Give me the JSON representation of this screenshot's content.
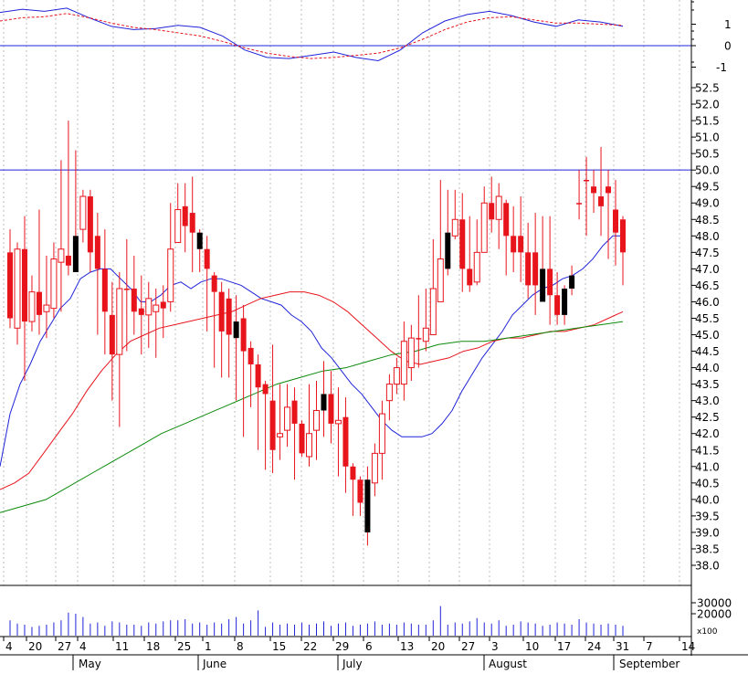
{
  "chart_data": {
    "type": "candlestick",
    "colors": {
      "up_candle": "#e8141c",
      "down_candle": "#000000",
      "wick": "#e8141c",
      "ma_fast": "#1f24d8",
      "ma_mid": "#e8141c",
      "ma_slow": "#0a8a0a",
      "reference_line": "#1f24d8",
      "volume_bar": "#1f24d8",
      "oscillator_main": "#1f24d8",
      "oscillator_signal": "#e8141c",
      "grid": "#bdbdbd"
    },
    "x_tick_labels": [
      "4",
      "20",
      "27",
      "4",
      "11",
      "18",
      "25",
      "1",
      "8",
      "15",
      "22",
      "29",
      "6",
      "13",
      "20",
      "27",
      "3",
      "10",
      "17",
      "24",
      "31",
      "7",
      "14"
    ],
    "month_labels": [
      "May",
      "June",
      "July",
      "August",
      "September"
    ],
    "price_axis": {
      "ylim": [
        37.5,
        52.8
      ],
      "ticks": [
        "38.0",
        "38.5",
        "39.0",
        "39.5",
        "40.0",
        "40.5",
        "41.0",
        "41.5",
        "42.0",
        "42.5",
        "43.0",
        "43.5",
        "44.0",
        "44.5",
        "45.0",
        "45.5",
        "46.0",
        "46.5",
        "47.0",
        "47.5",
        "48.0",
        "48.5",
        "49.0",
        "49.5",
        "50.0",
        "50.5",
        "51.0",
        "51.5",
        "52.0",
        "52.5"
      ],
      "reference_value": 50.0
    },
    "oscillator_axis": {
      "ylim": [
        -1.5,
        2.2
      ],
      "ticks": [
        "-1",
        "0",
        "1"
      ],
      "reference_value": 0
    },
    "volume_axis": {
      "ylim": [
        0,
        40000
      ],
      "ticks": [
        "20000",
        "30000"
      ],
      "unit_label": "x100"
    },
    "candles": {
      "open": [
        47.5,
        45.2,
        47.6,
        45.4,
        46.3,
        45.7,
        45.8,
        47.2,
        47.4,
        46.9,
        48.2,
        49.2,
        48.0,
        47.0,
        45.6,
        44.4,
        46.4,
        46.4,
        45.8,
        45.6,
        45.7,
        46.0,
        46.0,
        47.8,
        48.9,
        48.7,
        48.1,
        47.6,
        46.8,
        46.3,
        46.1,
        44.9,
        45.5,
        44.6,
        44.1,
        43.5,
        43.0,
        41.9,
        42.1,
        43.0,
        42.3,
        41.3,
        42.1,
        42.7,
        43.2,
        42.3,
        42.5,
        41.0,
        40.6,
        39.0,
        40.5,
        41.4,
        43.0,
        43.5,
        43.5,
        44.0,
        44.9,
        44.8,
        45.0,
        46.0,
        47.0,
        48.0,
        48.5,
        47.0,
        46.6,
        47.5,
        49.0,
        48.5,
        49.0,
        48.0,
        48.0,
        47.5,
        47.5,
        46.0,
        47.0,
        46.2,
        45.6,
        46.4,
        49.0,
        49.7,
        49.5,
        49.2,
        49.5,
        48.8,
        48.5
      ],
      "close": [
        45.5,
        47.6,
        45.4,
        46.3,
        45.6,
        45.9,
        47.3,
        47.6,
        47.1,
        48.0,
        49.2,
        47.5,
        47.0,
        45.7,
        44.4,
        46.4,
        46.4,
        45.7,
        45.6,
        46.1,
        45.9,
        45.8,
        47.6,
        48.8,
        48.3,
        48.1,
        47.6,
        47.0,
        46.3,
        45.1,
        45.0,
        45.4,
        44.5,
        44.1,
        43.4,
        43.2,
        41.5,
        42.0,
        42.8,
        42.3,
        41.4,
        42.0,
        42.7,
        43.2,
        42.3,
        42.4,
        41.0,
        40.6,
        39.9,
        40.6,
        41.4,
        42.6,
        43.5,
        44.0,
        44.8,
        44.9,
        44.9,
        45.2,
        46.4,
        47.3,
        48.1,
        48.5,
        47.0,
        46.5,
        47.5,
        49.0,
        48.5,
        49.2,
        48.0,
        47.5,
        47.5,
        46.5,
        46.5,
        47.0,
        46.2,
        45.6,
        46.4,
        46.8,
        49.0,
        49.7,
        49.3,
        48.9,
        49.3,
        48.1,
        47.5
      ],
      "high": [
        48.2,
        47.8,
        48.6,
        46.8,
        48.8,
        47.4,
        47.8,
        50.3,
        51.5,
        50.6,
        49.4,
        49.4,
        48.7,
        48.2,
        46.6,
        46.9,
        47.9,
        47.4,
        46.8,
        46.6,
        46.4,
        46.5,
        49.0,
        49.6,
        49.6,
        49.8,
        48.2,
        48.0,
        46.9,
        46.6,
        46.4,
        46.2,
        45.9,
        44.8,
        44.4,
        43.6,
        44.7,
        43.5,
        43.5,
        43.4,
        42.4,
        43.5,
        43.6,
        44.2,
        43.9,
        43.4,
        43.1,
        41.1,
        40.7,
        41.0,
        41.7,
        43.0,
        43.8,
        44.3,
        45.4,
        45.3,
        46.2,
        46.4,
        47.9,
        49.7,
        49.4,
        49.4,
        49.3,
        48.6,
        48.5,
        49.5,
        49.8,
        49.6,
        49.1,
        48.9,
        49.2,
        48.4,
        48.7,
        48.6,
        48.6,
        46.9,
        46.5,
        47.1,
        50.0,
        50.4,
        50.0,
        50.7,
        50.0,
        49.7,
        48.6
      ],
      "low": [
        45.2,
        44.7,
        43.6,
        45.1,
        45.0,
        44.9,
        45.5,
        45.7,
        46.8,
        46.9,
        47.8,
        46.9,
        45.0,
        44.4,
        43.0,
        42.2,
        44.5,
        45.0,
        44.4,
        44.6,
        44.3,
        44.9,
        45.7,
        48.0,
        47.5,
        46.9,
        46.9,
        45.1,
        44.0,
        43.7,
        43.7,
        43.0,
        41.9,
        42.8,
        41.5,
        40.9,
        40.8,
        41.2,
        41.6,
        40.6,
        41.3,
        41.0,
        41.2,
        41.9,
        41.7,
        40.7,
        40.2,
        39.5,
        39.5,
        38.6,
        40.1,
        40.6,
        42.4,
        43.2,
        43.0,
        43.6,
        44.0,
        44.5,
        45.5,
        46.6,
        46.8,
        47.9,
        46.3,
        46.3,
        46.5,
        48.7,
        48.1,
        47.6,
        46.8,
        46.9,
        46.6,
        46.1,
        45.6,
        46.1,
        45.3,
        45.3,
        45.3,
        46.2,
        48.5,
        48.0,
        48.7,
        48.0,
        47.3,
        47.1,
        46.5
      ]
    },
    "ma_fast": [
      41.0,
      42.6,
      43.5,
      44.1,
      44.8,
      45.3,
      45.8,
      46.1,
      46.7,
      46.9,
      47.0,
      47.0,
      46.7,
      46.4,
      46.0,
      46.0,
      46.2,
      46.5,
      46.6,
      46.4,
      46.6,
      46.7,
      46.7,
      46.6,
      46.5,
      46.3,
      46.1,
      46.0,
      45.9,
      45.6,
      45.4,
      45.1,
      44.6,
      44.3,
      43.9,
      43.5,
      43.2,
      42.8,
      42.4,
      42.1,
      41.9,
      41.9,
      41.9,
      42.0,
      42.3,
      42.7,
      43.3,
      43.8,
      44.3,
      44.7,
      45.1,
      45.6,
      45.9,
      46.2,
      46.4,
      46.5,
      46.7,
      46.8,
      47.0,
      47.3,
      47.7,
      48.0,
      48.0
    ],
    "ma_mid": [
      40.3,
      40.5,
      40.8,
      41.4,
      42.0,
      42.6,
      43.3,
      43.9,
      44.4,
      44.8,
      45.0,
      45.2,
      45.3,
      45.4,
      45.5,
      45.6,
      45.7,
      45.9,
      46.1,
      46.2,
      46.3,
      46.3,
      46.2,
      46.0,
      45.7,
      45.3,
      44.9,
      44.5,
      44.2,
      44.1,
      44.2,
      44.3,
      44.5,
      44.6,
      44.8,
      44.9,
      44.9,
      45.0,
      45.1,
      45.1,
      45.2,
      45.3,
      45.5,
      45.7
    ],
    "ma_slow": [
      39.6,
      39.8,
      40.0,
      40.4,
      40.8,
      41.2,
      41.6,
      42.0,
      42.3,
      42.6,
      42.9,
      43.2,
      43.5,
      43.7,
      43.9,
      44.0,
      44.2,
      44.4,
      44.5,
      44.7,
      44.8,
      44.8,
      44.9,
      45.0,
      45.1,
      45.2,
      45.3,
      45.4
    ],
    "oscillator_main": [
      1.55,
      1.7,
      1.6,
      1.75,
      1.3,
      0.9,
      0.75,
      0.8,
      0.95,
      0.85,
      0.45,
      -0.2,
      -0.55,
      -0.6,
      -0.45,
      -0.3,
      -0.55,
      -0.7,
      -0.2,
      0.6,
      1.15,
      1.45,
      1.6,
      1.4,
      1.1,
      0.9,
      1.2,
      1.1,
      0.9
    ],
    "oscillator_signal": [
      1.15,
      1.3,
      1.35,
      1.5,
      1.3,
      1.05,
      0.85,
      0.75,
      0.6,
      0.45,
      0.2,
      -0.1,
      -0.35,
      -0.5,
      -0.6,
      -0.55,
      -0.45,
      -0.35,
      -0.1,
      0.3,
      0.75,
      1.1,
      1.3,
      1.35,
      1.2,
      1.05,
      1.05,
      1.0,
      0.95
    ],
    "volume": [
      14000,
      11000,
      10000,
      8000,
      9000,
      10000,
      12000,
      14000,
      21000,
      20000,
      17000,
      11000,
      12000,
      9000,
      13000,
      12000,
      10000,
      10000,
      9000,
      12000,
      11000,
      13000,
      14000,
      14000,
      15000,
      11000,
      12000,
      10000,
      12000,
      11000,
      15000,
      17000,
      11000,
      14000,
      23000,
      8000,
      12000,
      10000,
      11000,
      10000,
      12000,
      10000,
      11000,
      13000,
      9000,
      11000,
      12000,
      9000,
      10000,
      11000,
      13000,
      10000,
      11000,
      10000,
      12000,
      11000,
      10000,
      10000,
      14000,
      27000,
      10000,
      12000,
      11000,
      13000,
      16000,
      12000,
      11000,
      14000,
      9000,
      10000,
      13000,
      12000,
      11000,
      9000,
      10000,
      12000,
      11000,
      10000,
      15000,
      12000,
      11000,
      10000,
      11000,
      10000,
      9000
    ]
  }
}
